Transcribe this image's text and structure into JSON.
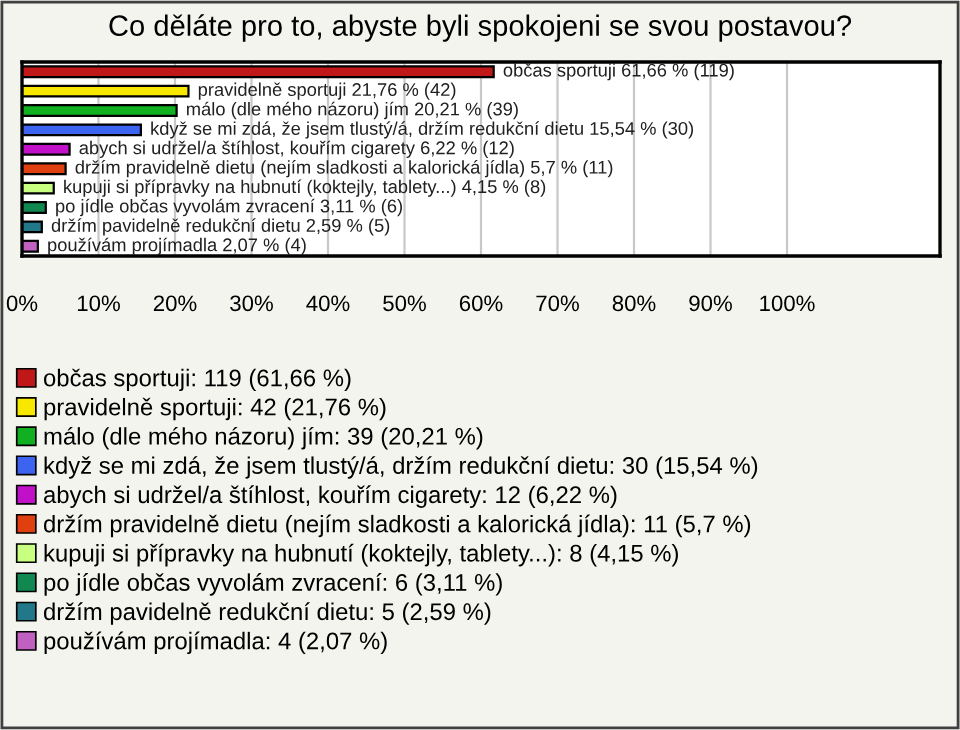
{
  "chart_data": {
    "type": "bar",
    "orientation": "horizontal",
    "title": "Co děláte pro to, abyste byli spokojeni se svou postavou?",
    "categories": [
      null,
      null,
      null,
      null,
      null,
      null,
      null,
      null,
      null,
      null
    ],
    "series": [
      {
        "name": "občas sportuji: 119 (61,66 %)",
        "color": "#c01818",
        "values": [
          61.66,
          null,
          null,
          null,
          null,
          null,
          null,
          null,
          null,
          null
        ],
        "value_labels": [
          "občas sportuji 61,66 % (119)",
          null,
          null,
          null,
          null,
          null,
          null,
          null,
          null,
          null
        ]
      },
      {
        "name": "pravidelně sportuji: 42 (21,76 %)",
        "color": "#f8e800",
        "values": [
          null,
          21.76,
          null,
          null,
          null,
          null,
          null,
          null,
          null,
          null
        ],
        "value_labels": [
          null,
          "pravidelně sportuji 21,76 % (42)",
          null,
          null,
          null,
          null,
          null,
          null,
          null,
          null
        ]
      },
      {
        "name": "málo (dle mého názoru) jím: 39 (20,21 %)",
        "color": "#10b020",
        "values": [
          null,
          null,
          20.21,
          null,
          null,
          null,
          null,
          null,
          null,
          null
        ],
        "value_labels": [
          null,
          null,
          "málo (dle mého názoru) jím 20,21 % (39)",
          null,
          null,
          null,
          null,
          null,
          null,
          null
        ]
      },
      {
        "name": "když se mi zdá, že jsem tlustý/á, držím redukční dietu: 30 (15,54 %)",
        "color": "#3c64f0",
        "values": [
          null,
          null,
          null,
          15.54,
          null,
          null,
          null,
          null,
          null,
          null
        ],
        "value_labels": [
          null,
          null,
          null,
          "když se mi zdá, že jsem tlustý/á, držím redukční dietu 15,54 % (30)",
          null,
          null,
          null,
          null,
          null,
          null
        ]
      },
      {
        "name": "abych si udržel/a štíhlost, kouřím cigarety: 12 (6,22 %)",
        "color": "#c010c8",
        "values": [
          null,
          null,
          null,
          null,
          6.22,
          null,
          null,
          null,
          null,
          null
        ],
        "value_labels": [
          null,
          null,
          null,
          null,
          "abych si udržel/a štíhlost, kouřím cigarety 6,22 % (12)",
          null,
          null,
          null,
          null,
          null
        ]
      },
      {
        "name": "držím pravidelně dietu (nejím sladkosti a kalorická jídla): 11 (5,7 %)",
        "color": "#e04010",
        "values": [
          null,
          null,
          null,
          null,
          null,
          5.7,
          null,
          null,
          null,
          null
        ],
        "value_labels": [
          null,
          null,
          null,
          null,
          null,
          "držím pravidelně dietu (nejím sladkosti a kalorická jídla) 5,7 % (11)",
          null,
          null,
          null,
          null
        ]
      },
      {
        "name": "kupuji si přípravky na hubnutí (koktejly, tablety...): 8 (4,15 %)",
        "color": "#c8ff80",
        "values": [
          null,
          null,
          null,
          null,
          null,
          null,
          4.15,
          null,
          null,
          null
        ],
        "value_labels": [
          null,
          null,
          null,
          null,
          null,
          null,
          "kupuji si přípravky na hubnutí (koktejly, tablety...) 4,15 % (8)",
          null,
          null,
          null
        ]
      },
      {
        "name": "po jídle občas vyvolám zvracení: 6 (3,11 %)",
        "color": "#108850",
        "values": [
          null,
          null,
          null,
          null,
          null,
          null,
          null,
          3.11,
          null,
          null
        ],
        "value_labels": [
          null,
          null,
          null,
          null,
          null,
          null,
          null,
          "po jídle občas vyvolám zvracení 3,11 % (6)",
          null,
          null
        ]
      },
      {
        "name": "držím pavidelně redukční dietu: 5 (2,59 %)",
        "color": "#207888",
        "values": [
          null,
          null,
          null,
          null,
          null,
          null,
          null,
          null,
          2.59,
          null
        ],
        "value_labels": [
          null,
          null,
          null,
          null,
          null,
          null,
          null,
          null,
          "držím pavidelně redukční dietu 2,59 % (5)",
          null
        ]
      },
      {
        "name": "používám projímadla: 4 (2,07 %)",
        "color": "#c060c0",
        "values": [
          null,
          null,
          null,
          null,
          null,
          null,
          null,
          null,
          null,
          2.07
        ],
        "value_labels": [
          null,
          null,
          null,
          null,
          null,
          null,
          null,
          null,
          null,
          "používám projímadla 2,07 % (4)"
        ]
      }
    ],
    "xlim": [
      0,
      120
    ],
    "xticks": [
      {
        "value": 0,
        "label": "0%"
      },
      {
        "value": 10,
        "label": "10%"
      },
      {
        "value": 20,
        "label": "20%"
      },
      {
        "value": 30,
        "label": "30%"
      },
      {
        "value": 40,
        "label": "40%"
      },
      {
        "value": 50,
        "label": "50%"
      },
      {
        "value": 60,
        "label": "60%"
      },
      {
        "value": 70,
        "label": "70%"
      },
      {
        "value": 80,
        "label": "80%"
      },
      {
        "value": 90,
        "label": "90%"
      },
      {
        "value": 100,
        "label": "100%"
      }
    ],
    "grid": "x",
    "legend": "bottom"
  }
}
